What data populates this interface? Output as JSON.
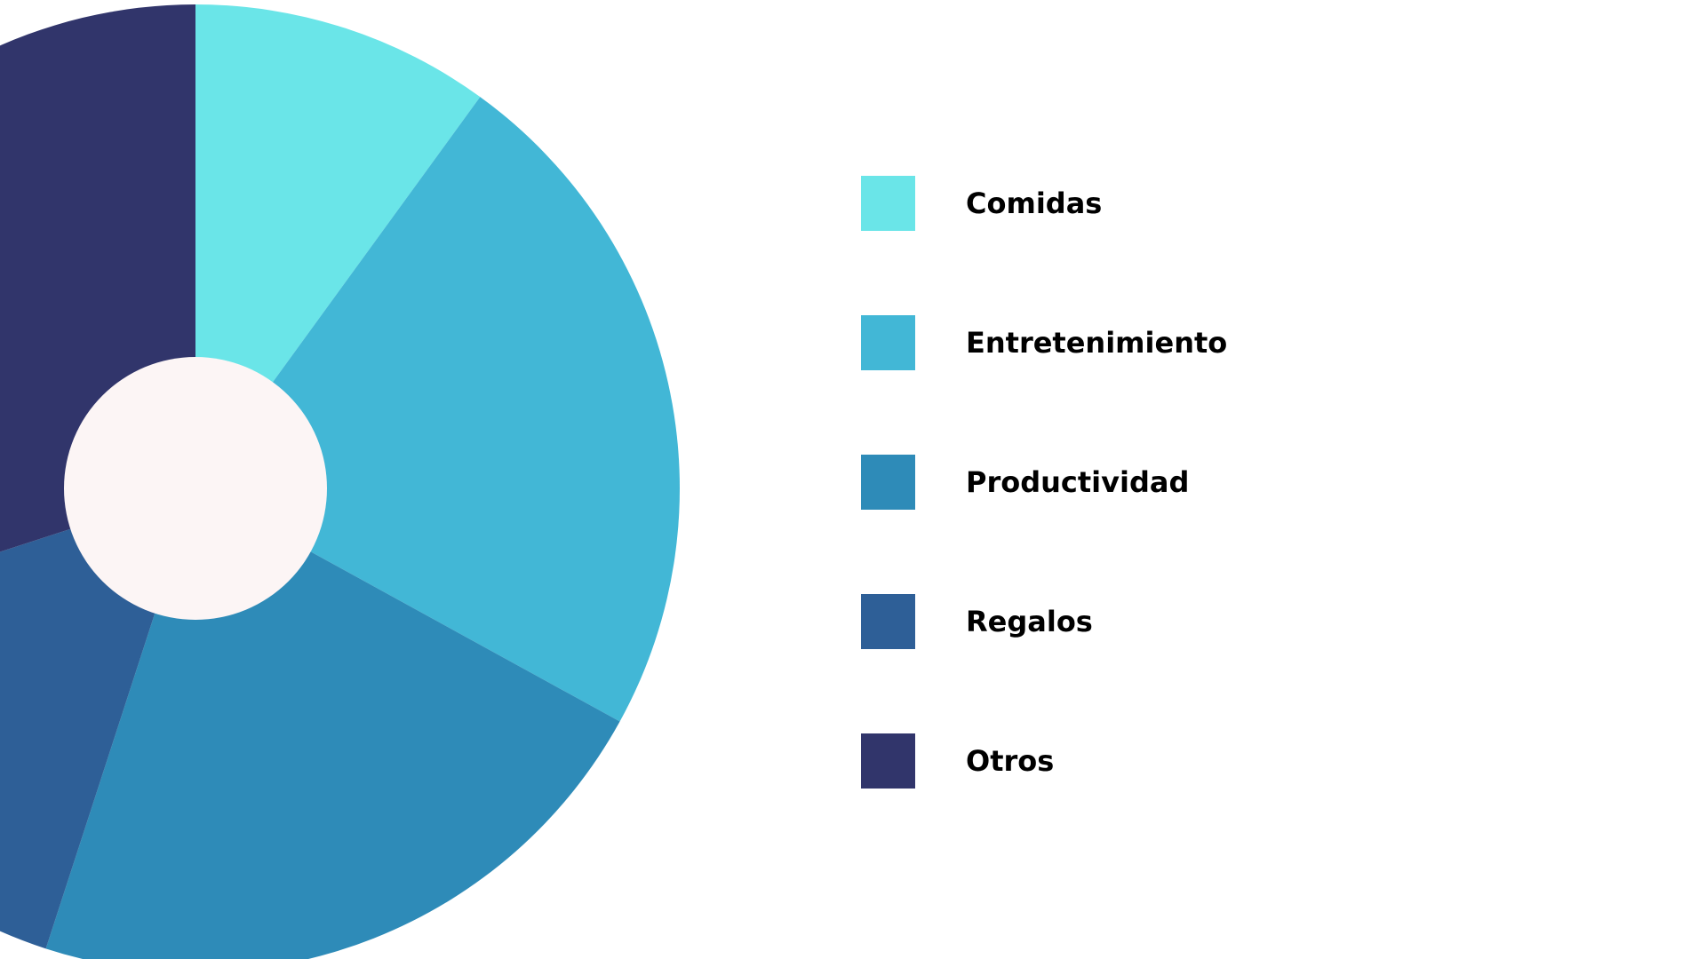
{
  "chart_data": {
    "type": "pie",
    "style": "donut",
    "title": "",
    "categories": [
      "Comidas",
      "Entretenimiento",
      "Productividad",
      "Regalos",
      "Otros"
    ],
    "values": [
      10,
      23,
      22,
      15,
      30
    ],
    "colors": [
      "#6AE5E8",
      "#42B7D6",
      "#2E8BB8",
      "#2E5F97",
      "#31356B"
    ],
    "hole_color": "#FCF5F5",
    "legend": {
      "placement": "right",
      "items": [
        {
          "label": "Comidas",
          "color": "#6AE5E8"
        },
        {
          "label": "Entretenimiento",
          "color": "#42B7D6"
        },
        {
          "label": "Productividad",
          "color": "#2E8BB8"
        },
        {
          "label": "Regalos",
          "color": "#2E5F97"
        },
        {
          "label": "Otros",
          "color": "#31356B"
        }
      ]
    }
  }
}
